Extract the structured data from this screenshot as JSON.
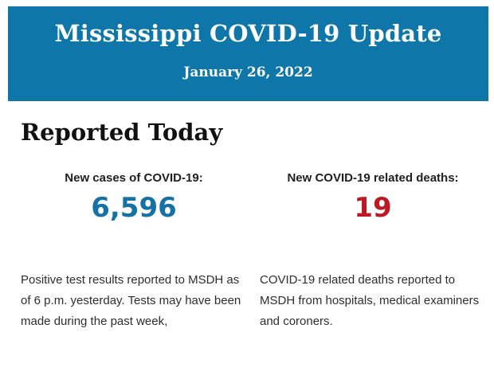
{
  "banner": {
    "title": "Mississippi COVID-19 Update",
    "date": "January 26, 2022",
    "bg_color": "#0F76A9",
    "text_color": "#FCFEFD"
  },
  "section": {
    "heading": "Reported Today"
  },
  "stats": [
    {
      "label": "New cases of COVID-19:",
      "value": "6,596",
      "value_color": "#1572A6",
      "description": "Positive test results reported to MSDH as of 6 p.m. yesterday. Tests may have been made during the past week,"
    },
    {
      "label": "New COVID-19 related deaths:",
      "value": "19",
      "value_color": "#C01823",
      "description": "COVID-19 related deaths reported to MSDH from hospitals, medical examiners and coroners."
    }
  ]
}
